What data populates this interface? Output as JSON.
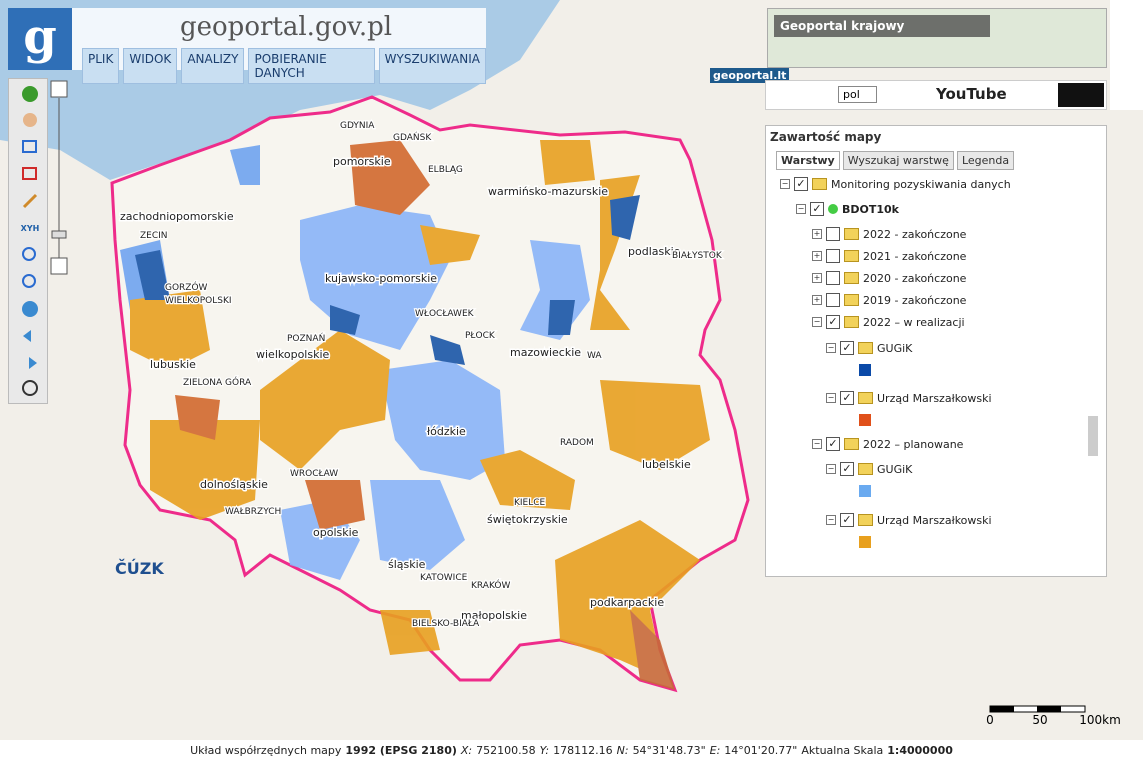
{
  "header": {
    "logo": "geoportal.gov.pl",
    "menu": [
      "PLIK",
      "WIDOK",
      "ANALIZY",
      "POBIERANIE DANYCH",
      "WYSZUKIWANIA"
    ]
  },
  "top_right": {
    "overview_title": "Geoportal krajowy",
    "lt_logo": "geoportal.lt",
    "language": "pol",
    "youtube": "YouTube"
  },
  "toolbar": {
    "xyh": "XYH"
  },
  "panel": {
    "title": "Zawartość mapy",
    "tabs": [
      "Warstwy",
      "Wyszukaj warstwę",
      "Legenda"
    ],
    "tree": [
      "Monitoring pozyskiwania danych",
      "BDOT10k",
      "2022 - zakończone",
      "2021 - zakończone",
      "2020 - zakończone",
      "2019 - zakończone",
      "2022 – w realizacji",
      "GUGiK",
      "Urząd Marszałkowski",
      "2022 – planowane",
      "GUGiK",
      "Urząd Marszałkowski"
    ]
  },
  "map": {
    "regions": [
      "zachodniopomorskie",
      "pomorskie",
      "warmińsko-mazurskie",
      "podlaskie",
      "kujawsko-pomorskie",
      "lubuskie",
      "wielkopolskie",
      "mazowieckie",
      "łódzkie",
      "lubelskie",
      "dolnośląskie",
      "opolskie",
      "śląskie",
      "świętokrzyskie",
      "małopolskie",
      "podkarpackie"
    ],
    "cities": [
      "GDYNIA",
      "GDAŃSK",
      "ELBLĄG",
      "ZECIN",
      "GORZÓW",
      "WIELKOPOLSKI",
      "POZNAŃ",
      "ZIELONA GÓRA",
      "WROCŁAW",
      "WAŁBRZYCH",
      "PŁOCK",
      "WŁOCŁAWEK",
      "WA",
      "BIAŁYSTOK",
      "RADOM",
      "KIELCE",
      "KATOWICE",
      "KRAKÓW",
      "BIELSKO-BIAŁA"
    ],
    "cuzk": "ČÚZK",
    "scale": [
      "0",
      "50",
      "100km"
    ]
  },
  "status": {
    "crs_label": "Układ współrzędnych mapy",
    "crs": "1992 (EPSG 2180)",
    "x_label": "X:",
    "x": "752100.58",
    "y_label": "Y:",
    "y": "178112.16",
    "n_label": "N:",
    "n": "54°31'48.73\"",
    "e_label": "E:",
    "e": "14°01'20.77\"",
    "scale_label": "Aktualna Skala",
    "scale": "1:4000000"
  }
}
